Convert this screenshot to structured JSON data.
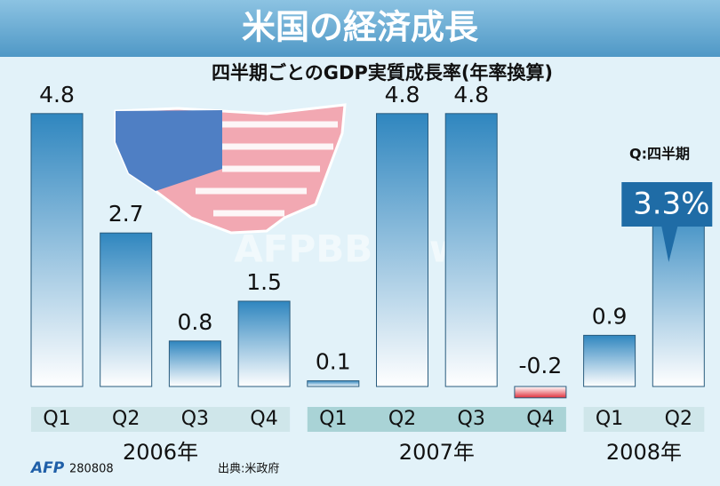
{
  "chart_data": {
    "type": "bar",
    "title": "米国の経済成長",
    "subtitle": "四半期ごとのGDP実質成長率(年率換算)",
    "note": "Q:四半期",
    "source": "出典:米政府",
    "agency": "AFP",
    "code": "280808",
    "watermark": "AFPBBNews",
    "color": "#2f86bf",
    "negative_color": "#e0303c",
    "groups": [
      {
        "name": "2006年",
        "categories": [
          "Q1",
          "Q2",
          "Q3",
          "Q4"
        ],
        "values": [
          4.8,
          2.7,
          0.8,
          1.5
        ],
        "value_labels": [
          "4.8",
          "2.7",
          "0.8",
          "1.5"
        ]
      },
      {
        "name": "2007年",
        "categories": [
          "Q1",
          "Q2",
          "Q3",
          "Q4"
        ],
        "values": [
          0.1,
          4.8,
          4.8,
          -0.2
        ],
        "value_labels": [
          "0.1",
          "4.8",
          "4.8",
          "-0.2"
        ]
      },
      {
        "name": "2008年",
        "categories": [
          "Q1",
          "Q2"
        ],
        "values": [
          0.9,
          3.3
        ],
        "value_labels": [
          "0.9",
          "3.3%"
        ]
      }
    ]
  }
}
